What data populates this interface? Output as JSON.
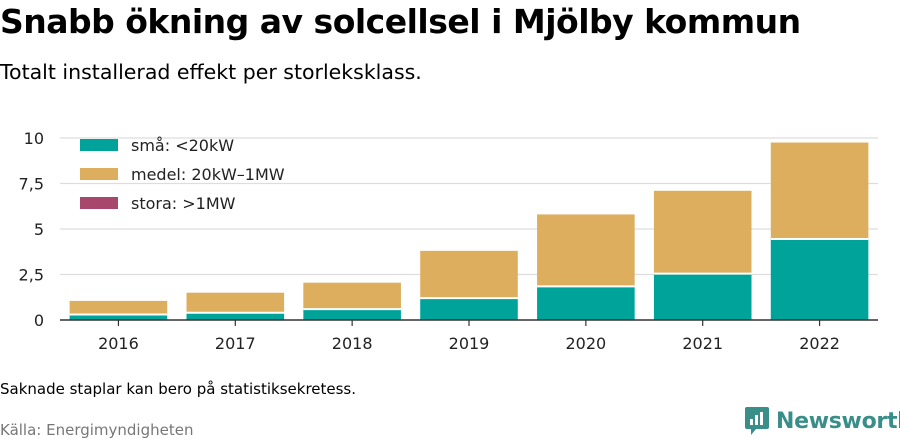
{
  "header": {
    "title": "Snabb ökning av solcellsel i Mjölby kommun",
    "subtitle": "Totalt installerad effekt per storleksklass."
  },
  "footer": {
    "note": "Saknade staplar kan bero på statistiksekretess.",
    "source": "Källa: Energimyndigheten",
    "brand": "Newsworthy"
  },
  "colors": {
    "sma": "#00a39a",
    "medel": "#dcae5d",
    "stora": "#a6476b",
    "grid": "#dddddd",
    "axis": "#333333",
    "brand": "#3a8e8a"
  },
  "chart_data": {
    "type": "bar",
    "stacked": true,
    "categories": [
      "2016",
      "2017",
      "2018",
      "2019",
      "2020",
      "2021",
      "2022"
    ],
    "series": [
      {
        "name": "små: <20kW",
        "values": [
          0.3,
          0.4,
          0.6,
          1.2,
          1.85,
          2.55,
          4.45
        ]
      },
      {
        "name": "medel: 20kW–1MW",
        "values": [
          0.75,
          1.1,
          1.45,
          2.6,
          3.95,
          4.55,
          5.3
        ]
      },
      {
        "name": "stora: >1MW",
        "values": [
          0,
          0,
          0,
          0,
          0,
          0,
          0
        ]
      }
    ],
    "yticks": [
      "0",
      "2,5",
      "5",
      "7,5",
      "10"
    ],
    "ytick_values": [
      0,
      2.5,
      5,
      7.5,
      10
    ],
    "ylim": [
      0,
      10.5
    ],
    "grid": true,
    "legend_position": "top-left"
  }
}
